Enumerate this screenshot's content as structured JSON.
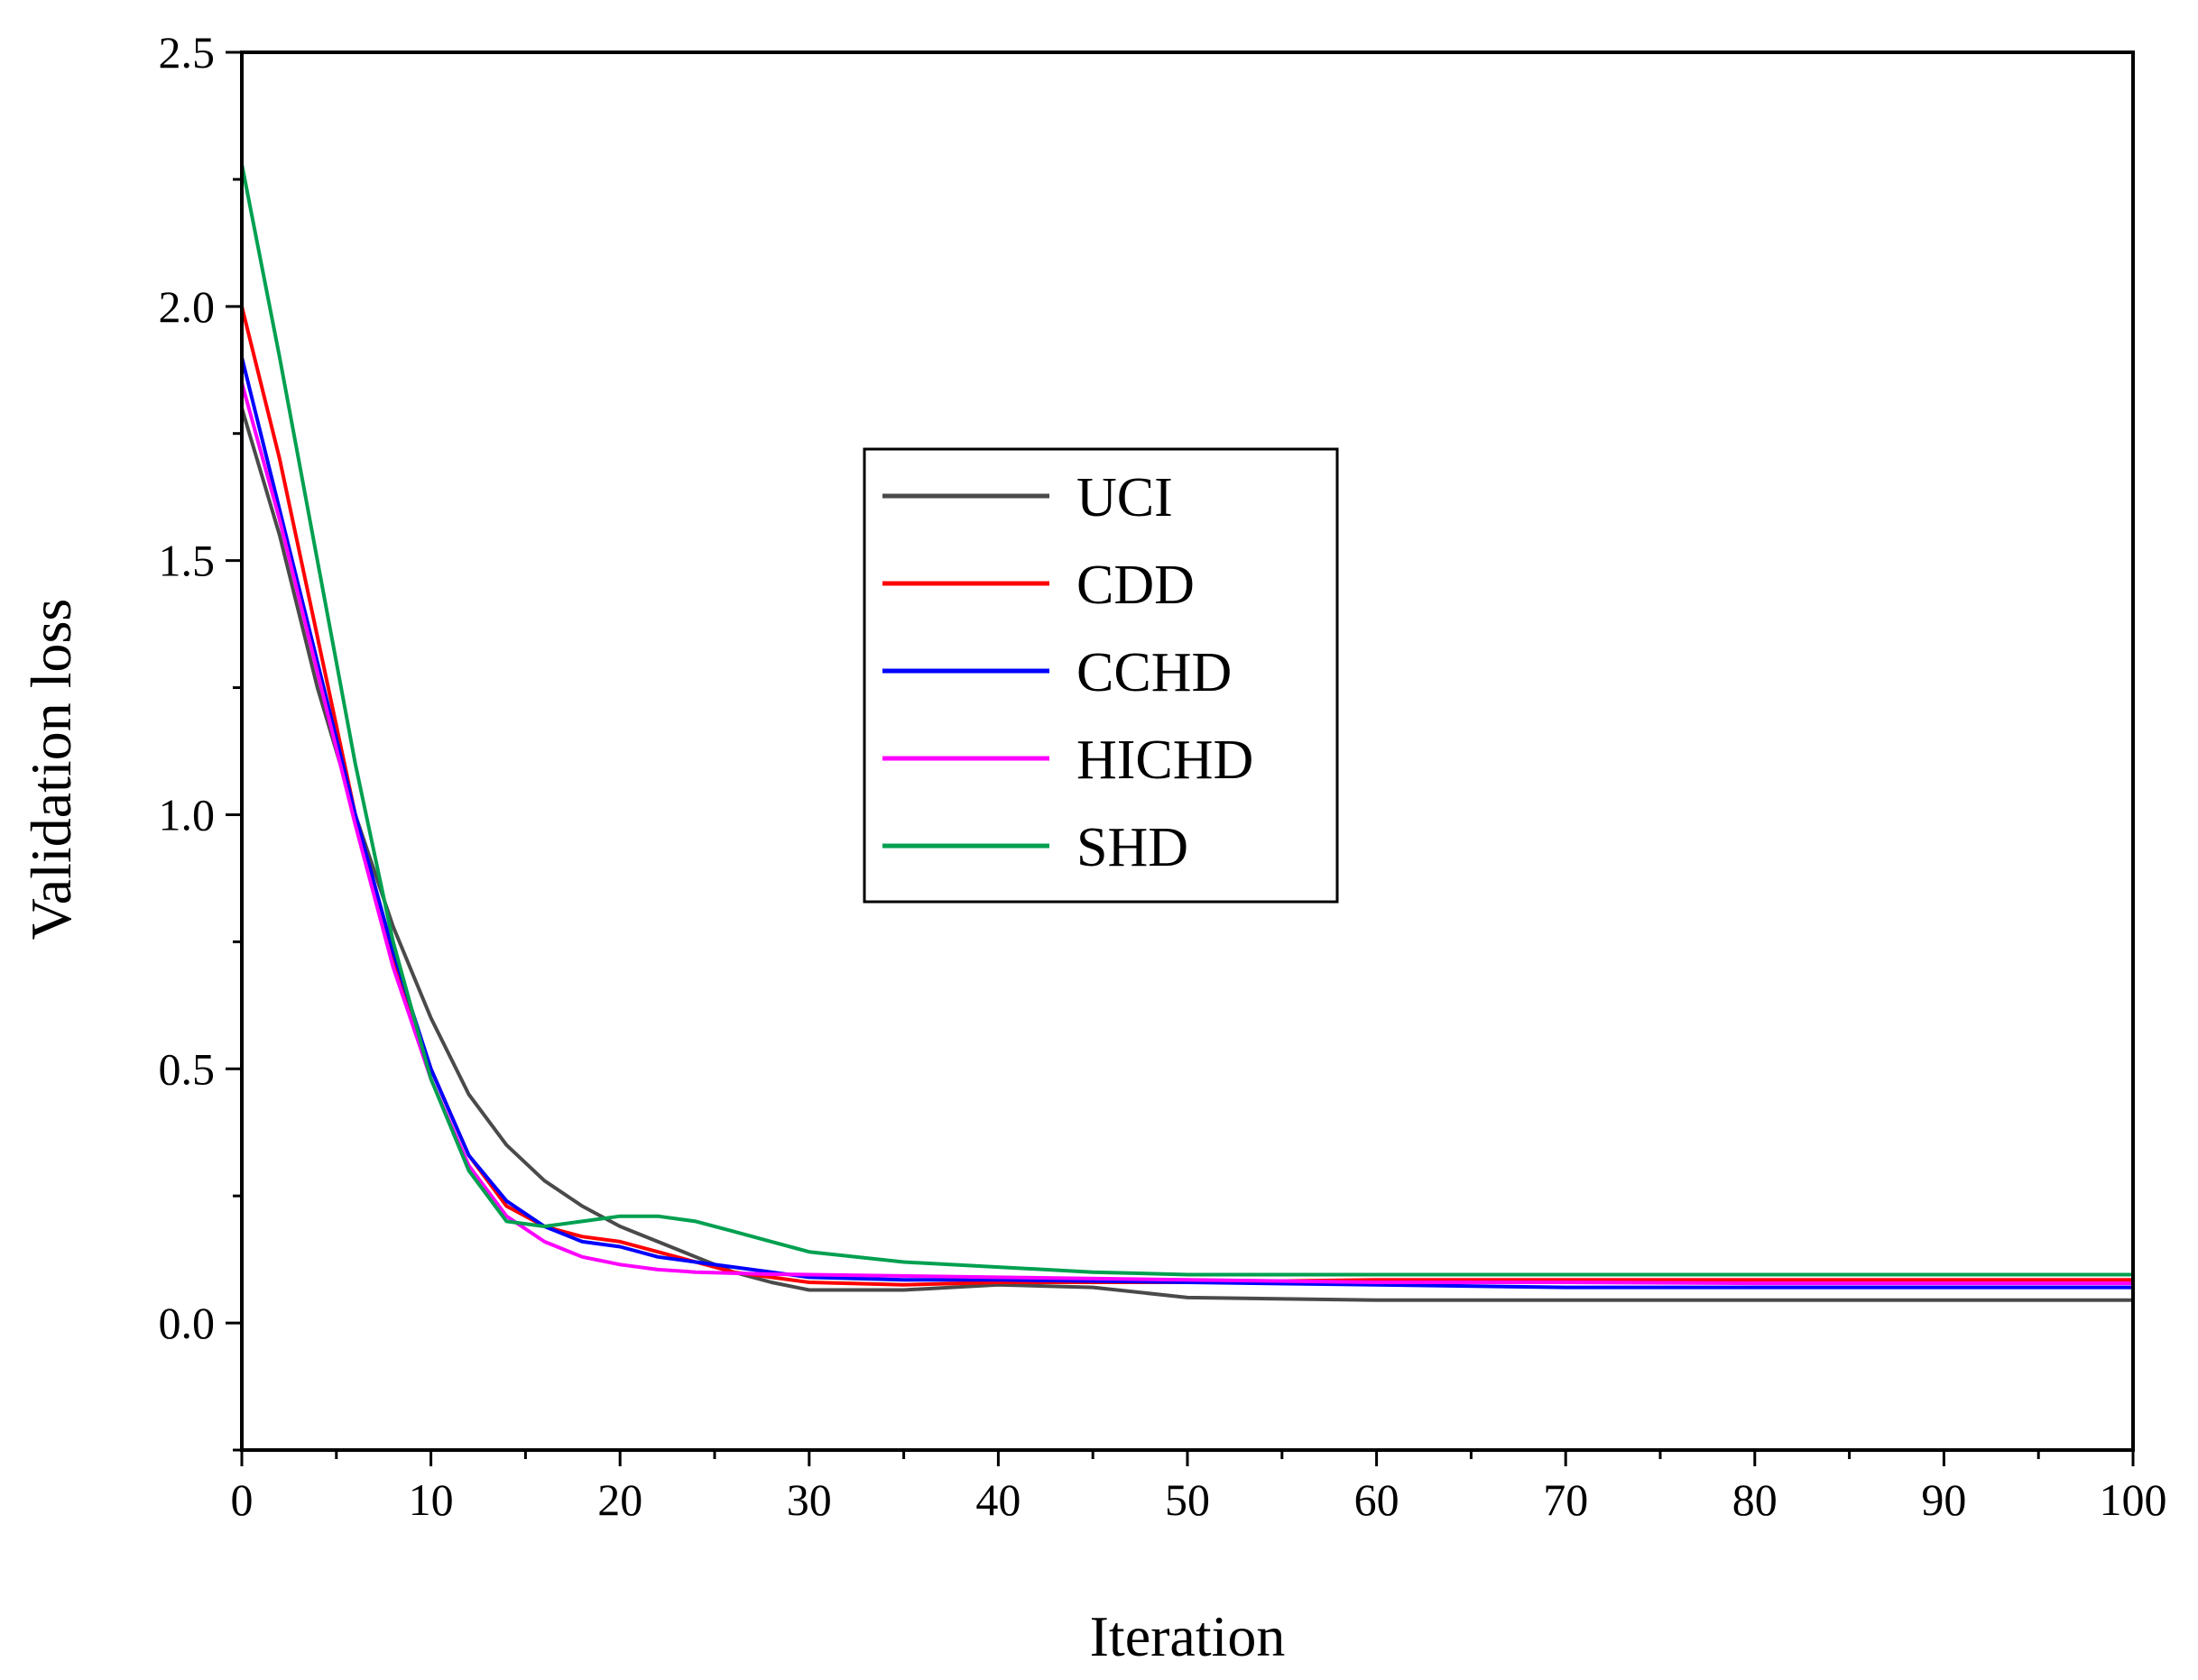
{
  "chart_data": {
    "type": "line",
    "title": "",
    "xlabel": "Iteration",
    "ylabel": "Validation loss",
    "xlim": [
      0,
      100
    ],
    "ylim": [
      -0.25,
      2.5
    ],
    "x_ticks": [
      0,
      10,
      20,
      30,
      40,
      50,
      60,
      70,
      80,
      90,
      100
    ],
    "x_tick_labels": [
      "0",
      "10",
      "20",
      "30",
      "40",
      "50",
      "60",
      "70",
      "80",
      "90",
      "100"
    ],
    "y_ticks": [
      0.0,
      0.5,
      1.0,
      1.5,
      2.0,
      2.5
    ],
    "y_tick_labels": [
      "0.0",
      "0.5",
      "1.0",
      "1.5",
      "2.0",
      "2.5"
    ],
    "grid": false,
    "legend_position": "center",
    "series": [
      {
        "name": "UCI",
        "color": "#4a4a4a",
        "points": [
          [
            0,
            1.8
          ],
          [
            2,
            1.55
          ],
          [
            4,
            1.25
          ],
          [
            6,
            1.0
          ],
          [
            8,
            0.78
          ],
          [
            10,
            0.6
          ],
          [
            12,
            0.45
          ],
          [
            14,
            0.35
          ],
          [
            16,
            0.28
          ],
          [
            18,
            0.23
          ],
          [
            20,
            0.19
          ],
          [
            22,
            0.16
          ],
          [
            24,
            0.13
          ],
          [
            26,
            0.1
          ],
          [
            28,
            0.08
          ],
          [
            30,
            0.065
          ],
          [
            35,
            0.065
          ],
          [
            40,
            0.075
          ],
          [
            45,
            0.07
          ],
          [
            50,
            0.05
          ],
          [
            60,
            0.045
          ],
          [
            70,
            0.045
          ],
          [
            80,
            0.045
          ],
          [
            90,
            0.045
          ],
          [
            100,
            0.045
          ]
        ]
      },
      {
        "name": "CDD",
        "color": "#ff0000",
        "points": [
          [
            0,
            2.0
          ],
          [
            2,
            1.7
          ],
          [
            4,
            1.35
          ],
          [
            6,
            1.0
          ],
          [
            8,
            0.72
          ],
          [
            10,
            0.5
          ],
          [
            12,
            0.33
          ],
          [
            14,
            0.23
          ],
          [
            16,
            0.19
          ],
          [
            18,
            0.17
          ],
          [
            20,
            0.16
          ],
          [
            22,
            0.14
          ],
          [
            24,
            0.12
          ],
          [
            26,
            0.1
          ],
          [
            28,
            0.09
          ],
          [
            30,
            0.08
          ],
          [
            35,
            0.075
          ],
          [
            40,
            0.08
          ],
          [
            50,
            0.08
          ],
          [
            60,
            0.085
          ],
          [
            70,
            0.085
          ],
          [
            80,
            0.085
          ],
          [
            90,
            0.085
          ],
          [
            100,
            0.085
          ]
        ]
      },
      {
        "name": "CCHD",
        "color": "#0000ff",
        "points": [
          [
            0,
            1.9
          ],
          [
            2,
            1.6
          ],
          [
            4,
            1.3
          ],
          [
            6,
            1.0
          ],
          [
            8,
            0.73
          ],
          [
            10,
            0.5
          ],
          [
            12,
            0.33
          ],
          [
            14,
            0.24
          ],
          [
            16,
            0.19
          ],
          [
            18,
            0.16
          ],
          [
            20,
            0.15
          ],
          [
            22,
            0.13
          ],
          [
            24,
            0.12
          ],
          [
            26,
            0.11
          ],
          [
            28,
            0.1
          ],
          [
            30,
            0.09
          ],
          [
            35,
            0.085
          ],
          [
            40,
            0.085
          ],
          [
            50,
            0.08
          ],
          [
            60,
            0.075
          ],
          [
            70,
            0.07
          ],
          [
            80,
            0.07
          ],
          [
            90,
            0.07
          ],
          [
            100,
            0.07
          ]
        ]
      },
      {
        "name": "HICHD",
        "color": "#ff00ff",
        "points": [
          [
            0,
            1.85
          ],
          [
            2,
            1.58
          ],
          [
            4,
            1.28
          ],
          [
            6,
            0.98
          ],
          [
            8,
            0.7
          ],
          [
            10,
            0.48
          ],
          [
            12,
            0.31
          ],
          [
            14,
            0.21
          ],
          [
            16,
            0.16
          ],
          [
            18,
            0.13
          ],
          [
            20,
            0.115
          ],
          [
            22,
            0.105
          ],
          [
            24,
            0.1
          ],
          [
            26,
            0.098
          ],
          [
            28,
            0.096
          ],
          [
            30,
            0.095
          ],
          [
            40,
            0.09
          ],
          [
            50,
            0.085
          ],
          [
            60,
            0.08
          ],
          [
            70,
            0.08
          ],
          [
            80,
            0.078
          ],
          [
            90,
            0.078
          ],
          [
            100,
            0.078
          ]
        ]
      },
      {
        "name": "SHD",
        "color": "#00a050",
        "points": [
          [
            0,
            2.28
          ],
          [
            2,
            1.9
          ],
          [
            4,
            1.5
          ],
          [
            6,
            1.1
          ],
          [
            8,
            0.75
          ],
          [
            10,
            0.48
          ],
          [
            12,
            0.3
          ],
          [
            14,
            0.2
          ],
          [
            16,
            0.19
          ],
          [
            18,
            0.2
          ],
          [
            20,
            0.21
          ],
          [
            22,
            0.21
          ],
          [
            24,
            0.2
          ],
          [
            26,
            0.18
          ],
          [
            28,
            0.16
          ],
          [
            30,
            0.14
          ],
          [
            35,
            0.12
          ],
          [
            40,
            0.11
          ],
          [
            45,
            0.1
          ],
          [
            50,
            0.095
          ],
          [
            60,
            0.095
          ],
          [
            70,
            0.095
          ],
          [
            80,
            0.095
          ],
          [
            90,
            0.095
          ],
          [
            100,
            0.095
          ]
        ]
      }
    ]
  }
}
